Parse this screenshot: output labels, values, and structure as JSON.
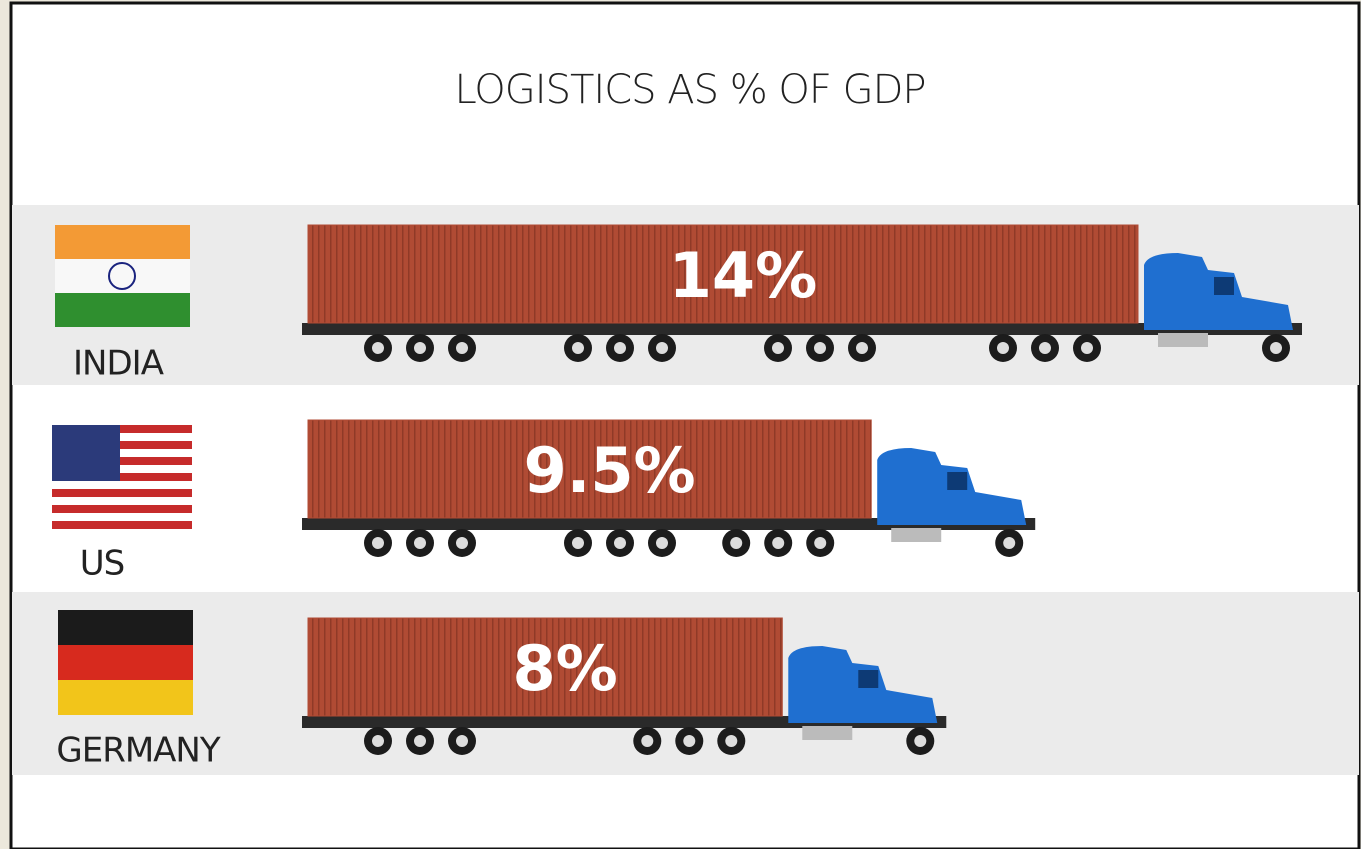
{
  "chart_data": {
    "type": "bar",
    "title": "LOGISTICS AS % OF GDP",
    "categories": [
      "INDIA",
      "US",
      "GERMANY"
    ],
    "values": [
      14,
      9.5,
      8
    ],
    "value_labels": [
      "14%",
      "9.5%",
      "8%"
    ],
    "color": "#b04b34"
  }
}
